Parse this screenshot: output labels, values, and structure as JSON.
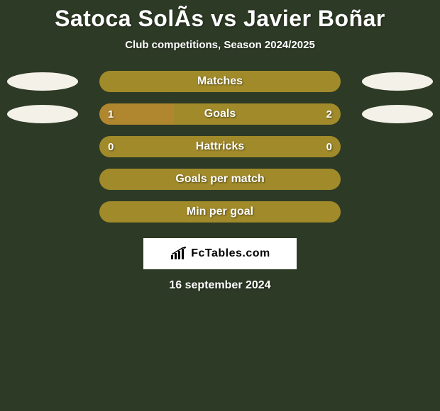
{
  "title": "Satoca SolÃ­s vs Javier Boñar",
  "subtitle": "Club competitions, Season 2024/2025",
  "colors": {
    "background": "#2d3a25",
    "bar_primary": "#a08a2a",
    "bar_secondary": "#b0862e",
    "oval_left": "#f4f1e9",
    "oval_right": "#f4f1e9",
    "text": "#ffffff"
  },
  "stats": [
    {
      "label": "Matches",
      "left_val": "",
      "right_val": "",
      "bar_color": "#a08a2a",
      "fill_color": "#a08a2a",
      "fill_pct": 100,
      "show_left_oval": true,
      "show_right_oval": true,
      "oval_left_color": "#f4f1e9",
      "oval_right_color": "#f4f1e9"
    },
    {
      "label": "Goals",
      "left_val": "1",
      "right_val": "2",
      "bar_color": "#a08a2a",
      "fill_color": "#b0862e",
      "fill_pct": 31,
      "show_left_oval": true,
      "show_right_oval": true,
      "oval_left_color": "#f4f1e9",
      "oval_right_color": "#f4f1e9"
    },
    {
      "label": "Hattricks",
      "left_val": "0",
      "right_val": "0",
      "bar_color": "#a08a2a",
      "fill_color": "#a08a2a",
      "fill_pct": 0,
      "show_left_oval": false,
      "show_right_oval": false,
      "oval_left_color": "#f4f1e9",
      "oval_right_color": "#f4f1e9"
    },
    {
      "label": "Goals per match",
      "left_val": "",
      "right_val": "",
      "bar_color": "#a08a2a",
      "fill_color": "#a08a2a",
      "fill_pct": 100,
      "show_left_oval": false,
      "show_right_oval": false,
      "oval_left_color": "#f4f1e9",
      "oval_right_color": "#f4f1e9"
    },
    {
      "label": "Min per goal",
      "left_val": "",
      "right_val": "",
      "bar_color": "#a08a2a",
      "fill_color": "#a08a2a",
      "fill_pct": 100,
      "show_left_oval": false,
      "show_right_oval": false,
      "oval_left_color": "#f4f1e9",
      "oval_right_color": "#f4f1e9"
    }
  ],
  "logo": {
    "text": "FcTables.com",
    "icon_color": "#000000",
    "bg": "#ffffff"
  },
  "date": "16 september 2024"
}
